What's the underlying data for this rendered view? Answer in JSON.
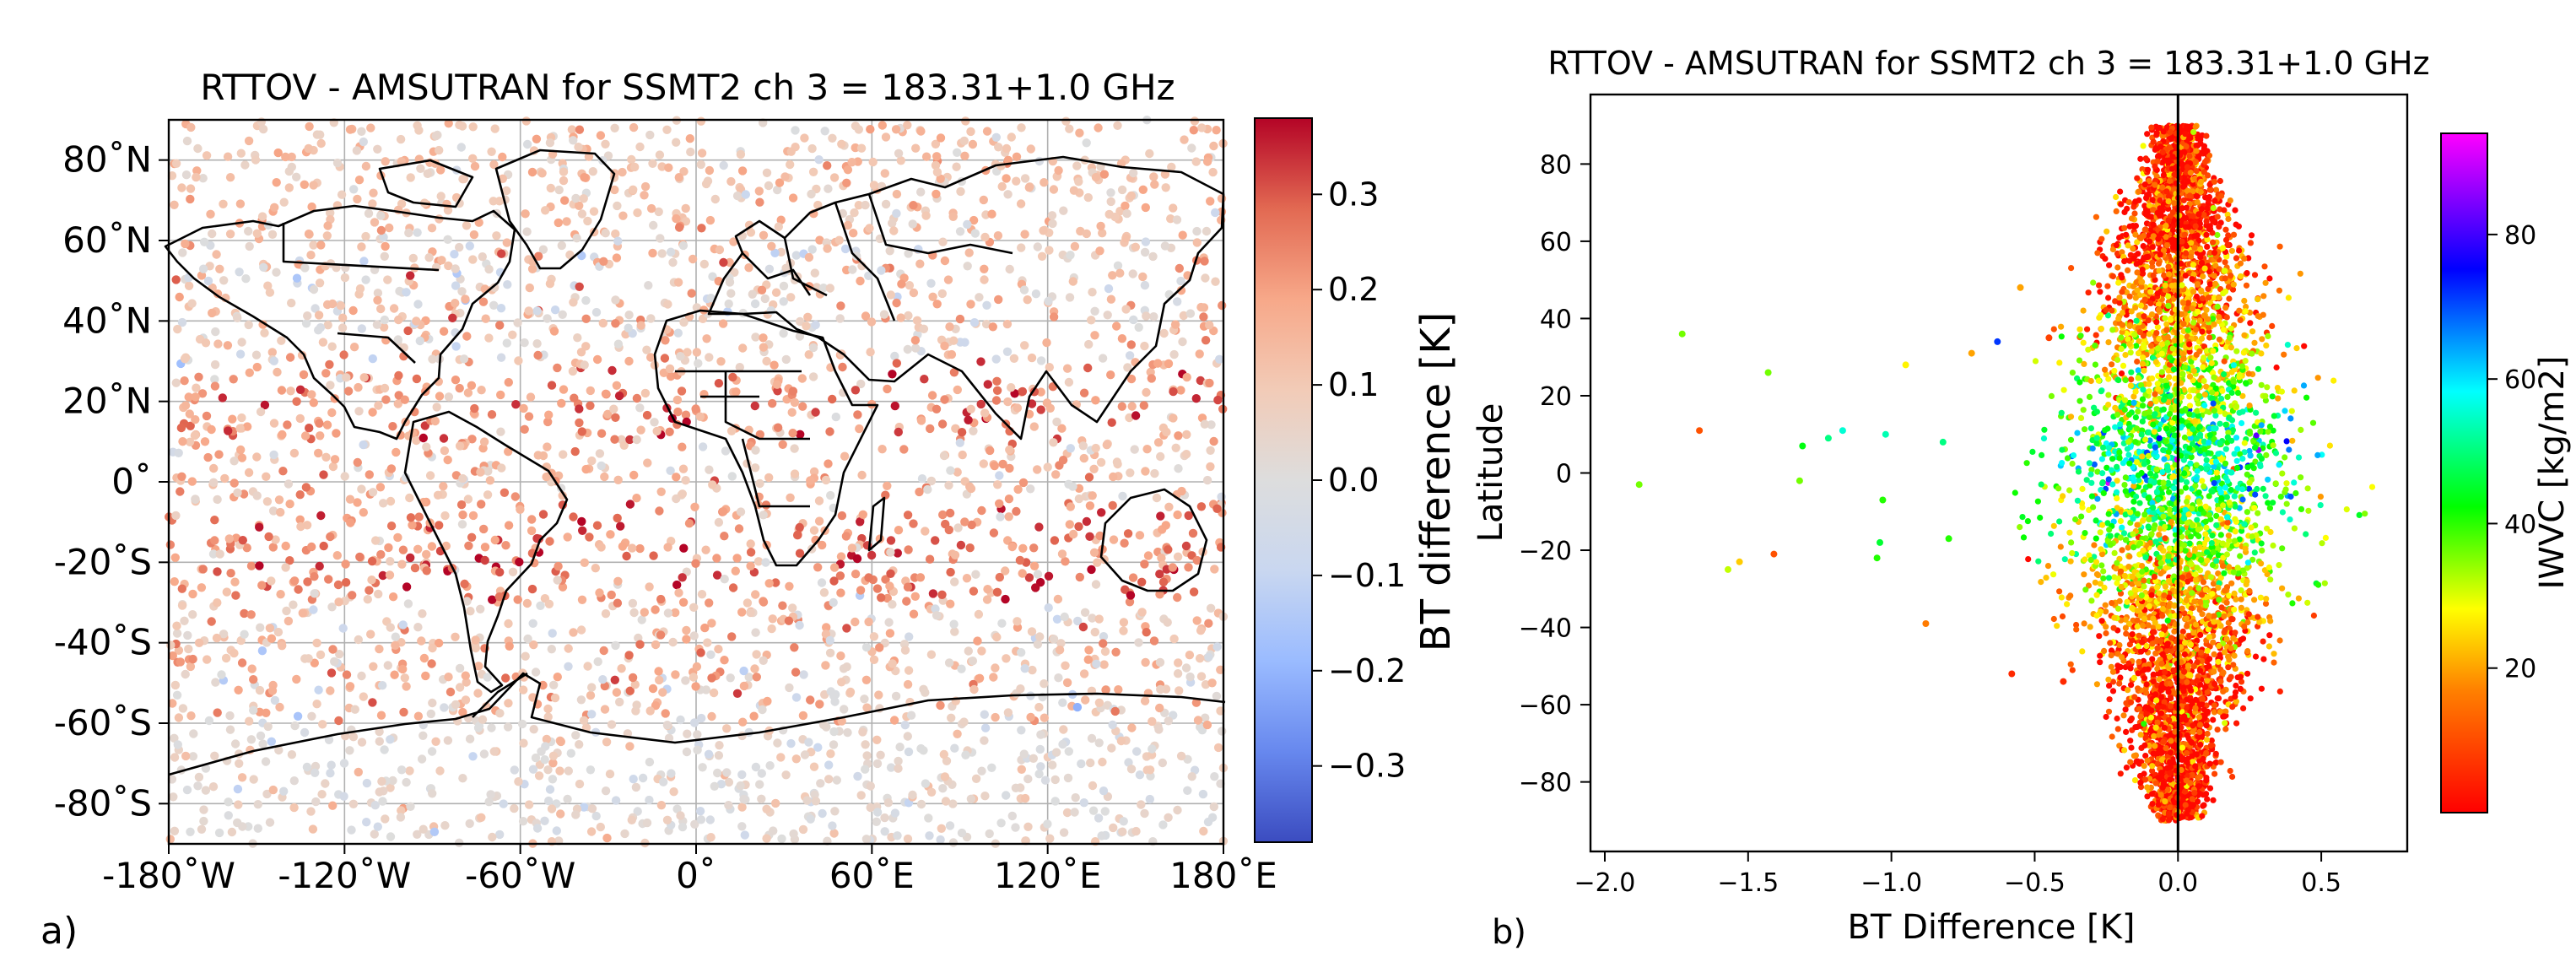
{
  "colors": {
    "bt_colormap": [
      "#3b4cc0",
      "#6788ee",
      "#9abbff",
      "#c9d7f0",
      "#dddddd",
      "#f2cbb7",
      "#f7a889",
      "#e26952",
      "#b40426"
    ],
    "iwvc_colormap": [
      "#ff0000",
      "#ff8000",
      "#ffff00",
      "#00ff00",
      "#00ffff",
      "#0000ff",
      "#ff00ff"
    ],
    "grid": "#b0b0b0",
    "coast": "#000000"
  },
  "panel_labels": {
    "a": "a)",
    "b": "b)"
  },
  "chart_data": [
    {
      "type": "scatter",
      "subtype": "map",
      "title": "RTTOV - AMSUTRAN for SSMT2 ch 3 = 183.31+1.0 GHz",
      "xlim": [
        -180,
        180
      ],
      "ylim": [
        -90,
        90
      ],
      "x_ticks": [
        -180,
        -120,
        -60,
        0,
        60,
        120,
        180
      ],
      "x_tick_labels": [
        "-180˚W",
        "-120˚W",
        "-60˚W",
        "0˚",
        "60˚E",
        "120˚E",
        "180˚E"
      ],
      "y_ticks": [
        80,
        60,
        40,
        20,
        0,
        -20,
        -40,
        -60,
        -80
      ],
      "y_tick_labels": [
        "80˚N",
        "60˚N",
        "40˚N",
        "20˚N",
        "0˚",
        "-20˚S",
        "-40˚S",
        "-60˚S",
        "-80˚S"
      ],
      "grid": true,
      "colorbar": {
        "label": "BT difference [K]",
        "range": [
          -0.38,
          0.38
        ],
        "ticks": [
          0.3,
          0.2,
          0.1,
          0.0,
          -0.1,
          -0.2,
          -0.3
        ],
        "tick_labels": [
          "0.3",
          "0.2",
          "0.1",
          "0.0",
          "−0.1",
          "−0.2",
          "−0.3"
        ]
      },
      "series": [
        {
          "values_by_latitude_band": [
            {
              "lat_range": [
                -90,
                -60
              ],
              "mean_bt_diff": 0.03,
              "spread": 0.05
            },
            {
              "lat_range": [
                -60,
                -30
              ],
              "mean_bt_diff": 0.1,
              "spread": 0.09
            },
            {
              "lat_range": [
                -30,
                -5
              ],
              "mean_bt_diff": 0.22,
              "spread": 0.09
            },
            {
              "lat_range": [
                -5,
                10
              ],
              "mean_bt_diff": 0.12,
              "spread": 0.08
            },
            {
              "lat_range": [
                10,
                30
              ],
              "mean_bt_diff": 0.2,
              "spread": 0.09
            },
            {
              "lat_range": [
                30,
                60
              ],
              "mean_bt_diff": 0.08,
              "spread": 0.09
            },
            {
              "lat_range": [
                60,
                90
              ],
              "mean_bt_diff": 0.1,
              "spread": 0.06
            }
          ]
        }
      ]
    },
    {
      "type": "scatter",
      "title": "RTTOV - AMSUTRAN for SSMT2 ch 3 = 183.31+1.0 GHz",
      "xlabel": "BT Difference [K]",
      "ylabel": "Latitude",
      "xlim": [
        -2.05,
        0.8
      ],
      "ylim": [
        -98,
        98
      ],
      "x_ticks": [
        -2.0,
        -1.5,
        -1.0,
        -0.5,
        0.0,
        0.5
      ],
      "x_tick_labels": [
        "−2.0",
        "−1.5",
        "−1.0",
        "−0.5",
        "0.0",
        "0.5"
      ],
      "y_ticks": [
        80,
        60,
        40,
        20,
        0,
        -20,
        -40,
        -60,
        -80
      ],
      "y_tick_labels": [
        "80",
        "60",
        "40",
        "20",
        "0",
        "−20",
        "−40",
        "−60",
        "−80"
      ],
      "vertical_line_at_x": 0.0,
      "colorbar": {
        "label": "IWVC [kg/m2]",
        "range": [
          0,
          94
        ],
        "ticks": [
          80,
          60,
          40,
          20
        ],
        "tick_labels": [
          "80",
          "60",
          "40",
          "20"
        ]
      },
      "outliers": [
        {
          "x": -1.88,
          "y": -3,
          "iwvc": 40
        },
        {
          "x": -1.73,
          "y": 36,
          "iwvc": 40
        },
        {
          "x": -1.67,
          "y": 11,
          "iwvc": 10
        },
        {
          "x": -1.57,
          "y": -25,
          "iwvc": 35
        },
        {
          "x": -1.53,
          "y": -23,
          "iwvc": 25
        },
        {
          "x": -1.43,
          "y": 26,
          "iwvc": 40
        },
        {
          "x": -1.41,
          "y": -21,
          "iwvc": 10
        },
        {
          "x": -1.32,
          "y": -2,
          "iwvc": 40
        },
        {
          "x": -1.31,
          "y": 7,
          "iwvc": 48
        },
        {
          "x": -1.22,
          "y": 9,
          "iwvc": 55
        },
        {
          "x": -1.17,
          "y": 11,
          "iwvc": 60
        },
        {
          "x": -1.05,
          "y": -22,
          "iwvc": 45
        },
        {
          "x": -1.04,
          "y": -18,
          "iwvc": 50
        },
        {
          "x": -1.03,
          "y": -7,
          "iwvc": 45
        },
        {
          "x": -1.02,
          "y": 10,
          "iwvc": 58
        },
        {
          "x": -0.95,
          "y": 28,
          "iwvc": 30
        },
        {
          "x": -0.88,
          "y": -39,
          "iwvc": 15
        },
        {
          "x": -0.82,
          "y": 8,
          "iwvc": 55
        },
        {
          "x": -0.8,
          "y": -17,
          "iwvc": 45
        },
        {
          "x": -0.72,
          "y": 31,
          "iwvc": 20
        },
        {
          "x": -0.63,
          "y": 34,
          "iwvc": 75
        },
        {
          "x": -0.58,
          "y": -52,
          "iwvc": 5
        },
        {
          "x": -0.55,
          "y": 48,
          "iwvc": 20
        },
        {
          "x": -0.45,
          "y": 35,
          "iwvc": 8
        },
        {
          "x": -0.4,
          "y": -54,
          "iwvc": 5
        }
      ],
      "dense_cloud": {
        "center_x": 0.0,
        "x_halfwidth_at_equator": 0.45,
        "latitude_range": [
          -90,
          90
        ],
        "iwvc_by_latitude": [
          {
            "lat": 90,
            "iwvc": 2
          },
          {
            "lat": 60,
            "iwvc": 6
          },
          {
            "lat": 40,
            "iwvc": 18
          },
          {
            "lat": 20,
            "iwvc": 40
          },
          {
            "lat": 5,
            "iwvc": 55
          },
          {
            "lat": -5,
            "iwvc": 50
          },
          {
            "lat": -20,
            "iwvc": 35
          },
          {
            "lat": -40,
            "iwvc": 15
          },
          {
            "lat": -60,
            "iwvc": 5
          },
          {
            "lat": -90,
            "iwvc": 1
          }
        ]
      }
    }
  ]
}
